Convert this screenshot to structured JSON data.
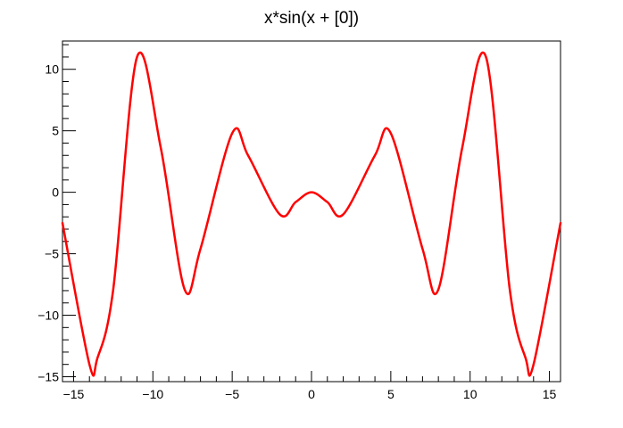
{
  "chart_data": {
    "type": "line",
    "title": "x*sin(x + [0])",
    "xlabel": "",
    "ylabel": "",
    "xlim": [
      -15.7,
      15.7
    ],
    "ylim": [
      -15.4,
      12.3
    ],
    "grid": false,
    "legend": "none",
    "x_ticks": [
      -15,
      -10,
      -5,
      0,
      5,
      10,
      15
    ],
    "x_tick_labels": [
      "−15",
      "−10",
      "−5",
      "0",
      "5",
      "10",
      "15"
    ],
    "y_ticks": [
      -15,
      -10,
      -5,
      0,
      5,
      10
    ],
    "y_tick_labels": [
      "−15",
      "−10",
      "−5",
      "0",
      "5",
      "10"
    ],
    "series": [
      {
        "color": "#ff0000",
        "x": [
          -15.7,
          -14.0,
          -13.5,
          -12.5,
          -11.0,
          -9.5,
          -8.0,
          -7.0,
          -5.0,
          -4.0,
          -2.0,
          -1.0,
          0.0,
          1.0,
          2.0,
          4.0,
          5.0,
          7.0,
          8.0,
          9.5,
          11.0,
          12.5,
          13.5,
          14.0,
          15.7
        ],
        "y": [
          -2.5,
          -14.0,
          -13.5,
          -7.9,
          11.0,
          3.6,
          -7.9,
          -4.6,
          4.8,
          3.0,
          -1.8,
          -0.8,
          0.0,
          -0.8,
          -1.8,
          3.0,
          4.8,
          -4.6,
          -7.9,
          3.6,
          11.0,
          -7.9,
          -13.5,
          -14.0,
          -2.5
        ]
      }
    ]
  }
}
